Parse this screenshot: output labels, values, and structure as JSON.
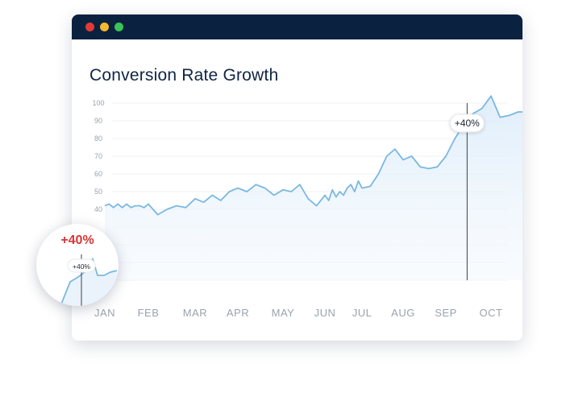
{
  "window": {
    "title": "Conversion Rate Growth"
  },
  "colors": {
    "line": "#7ab8e0",
    "title": "#0f2544",
    "titlebar": "#0b2140",
    "highlight": "#d93636"
  },
  "chart_data": {
    "type": "line",
    "title": "Conversion Rate Growth",
    "xlabel": "",
    "ylabel": "",
    "ylim": [
      0,
      100
    ],
    "yticks": [
      100,
      90,
      80,
      70,
      60,
      50,
      40
    ],
    "months": [
      "JAN",
      "FEB",
      "MAR",
      "APR",
      "MAY",
      "JUN",
      "JUL",
      "AUG",
      "SEP",
      "OCT"
    ],
    "x": [
      0.0,
      0.1,
      0.2,
      0.3,
      0.4,
      0.5,
      0.6,
      0.7,
      0.8,
      0.9,
      1.0,
      1.2,
      1.4,
      1.6,
      1.8,
      2.0,
      2.2,
      2.4,
      2.6,
      2.8,
      3.0,
      3.2,
      3.4,
      3.6,
      3.8,
      4.0,
      4.2,
      4.4,
      4.6,
      4.8,
      5.0,
      5.1,
      5.2,
      5.3,
      5.4,
      5.5,
      5.6,
      5.7,
      5.8,
      5.9,
      6.0,
      6.2,
      6.4,
      6.6,
      6.8,
      7.0,
      7.2,
      7.4,
      7.6,
      7.8,
      8.0,
      8.2,
      8.4,
      8.6,
      8.8,
      9.0,
      9.2,
      9.4,
      9.6,
      9.8
    ],
    "values": [
      42,
      43,
      41,
      43,
      41,
      43,
      41,
      42,
      42,
      41,
      43,
      37,
      40,
      42,
      41,
      46,
      44,
      48,
      45,
      50,
      52,
      50,
      54,
      52,
      48,
      51,
      50,
      54,
      46,
      42,
      48,
      45,
      51,
      47,
      50,
      48,
      52,
      54,
      50,
      56,
      52,
      53,
      60,
      70,
      74,
      68,
      70,
      64,
      63,
      64,
      70,
      80,
      88,
      94,
      97,
      104,
      92,
      93,
      95,
      95
    ],
    "annotation": {
      "label": "+40%",
      "x": 8.47
    },
    "magnifier_label": "+40%"
  }
}
